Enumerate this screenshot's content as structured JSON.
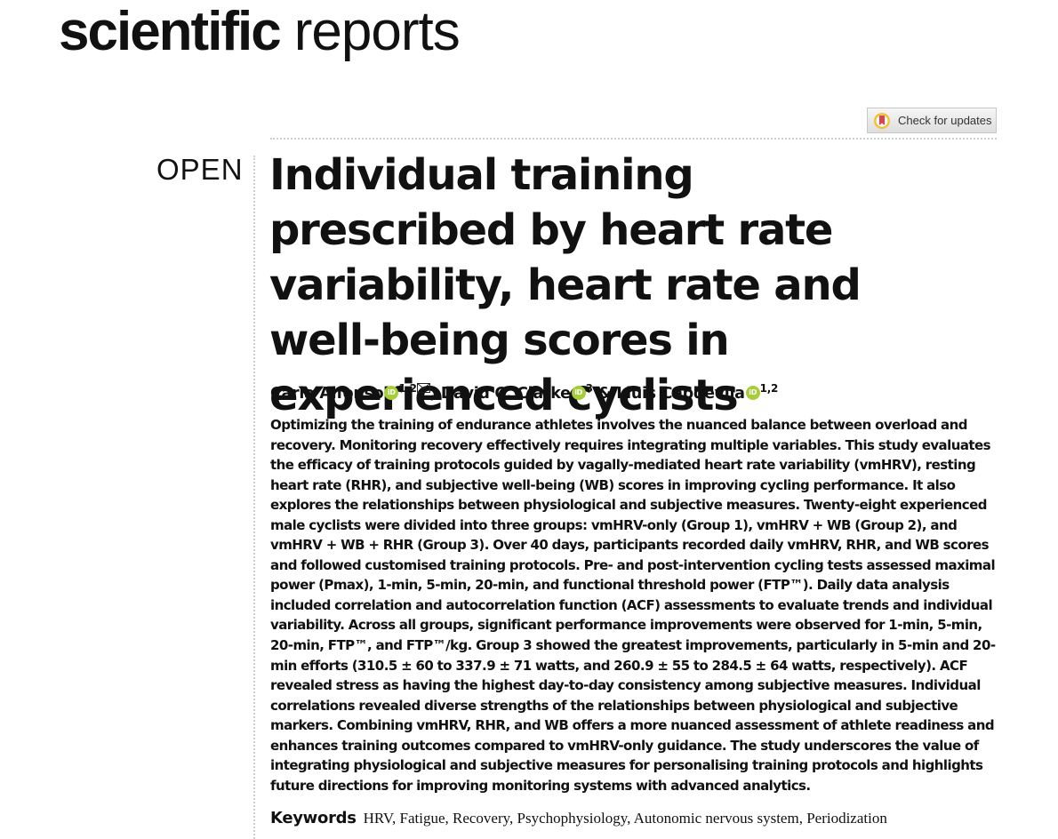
{
  "journal": {
    "name_bold": "scientific",
    "name_light": "reports"
  },
  "check_updates": {
    "label": "Check for updates",
    "icon": "check-for-updates-icon"
  },
  "access_label": "OPEN",
  "article": {
    "title": "Individual training prescribed by heart rate variability, heart rate and well-being scores in experienced cyclists",
    "authors": [
      {
        "name": "Carla Alfonso",
        "affiliations": "1,2",
        "orcid_icon": "orcid-icon",
        "corresponding": true
      },
      {
        "name": "David C. Clarke",
        "affiliations": "3",
        "orcid_icon": "orcid-icon"
      },
      {
        "name": "Lluis Capdevila",
        "affiliations": "1,2",
        "orcid_icon": "orcid-icon"
      }
    ],
    "author_separator": ",",
    "author_conjunction": "&",
    "orcid_text": "iD",
    "abstract": "Optimizing the training of endurance athletes involves the nuanced balance between overload and recovery. Monitoring recovery effectively requires integrating multiple variables. This study evaluates the efficacy of training protocols guided by vagally-mediated heart rate variability (vmHRV), resting heart rate (RHR), and subjective well-being (WB) scores in improving cycling performance. It also explores the relationships between physiological and subjective measures. Twenty-eight experienced male cyclists were divided into three groups: vmHRV-only (Group 1), vmHRV + WB (Group 2), and vmHRV + WB + RHR (Group 3). Over 40 days, participants recorded daily vmHRV, RHR, and WB scores and followed customised training protocols. Pre- and post-intervention cycling tests assessed maximal power (Pmax), 1-min, 5-min, 20-min, and functional threshold power (FTP™). Daily data analysis included correlation and autocorrelation function (ACF) assessments to evaluate trends and individual variability. Across all groups, significant performance improvements were observed for 1-min, 5-min, 20-min, FTP™, and FTP™/kg. Group 3 showed the greatest improvements, particularly in 5-min and 20-min efforts (310.5 ± 60 to 337.9 ± 71 watts, and 260.9 ± 55 to 284.5 ± 64 watts, respectively). ACF revealed stress as having the highest day-to-day consistency among subjective measures. Individual correlations revealed diverse strengths of the relationships between physiological and subjective markers. Combining vmHRV, RHR, and WB offers a more nuanced assessment of athlete readiness and enhances training outcomes compared to vmHRV-only guidance. The study underscores the value of integrating physiological and subjective measures for personalising training protocols and highlights future directions for improving monitoring systems with advanced analytics.",
    "keywords_label": "Keywords",
    "keywords": "HRV, Fatigue, Recovery, Psychophysiology, Autonomic nervous system, Periodization"
  },
  "colors": {
    "orcid": "#a6ce39",
    "divider": "#cfcfcf",
    "text": "#111111"
  }
}
